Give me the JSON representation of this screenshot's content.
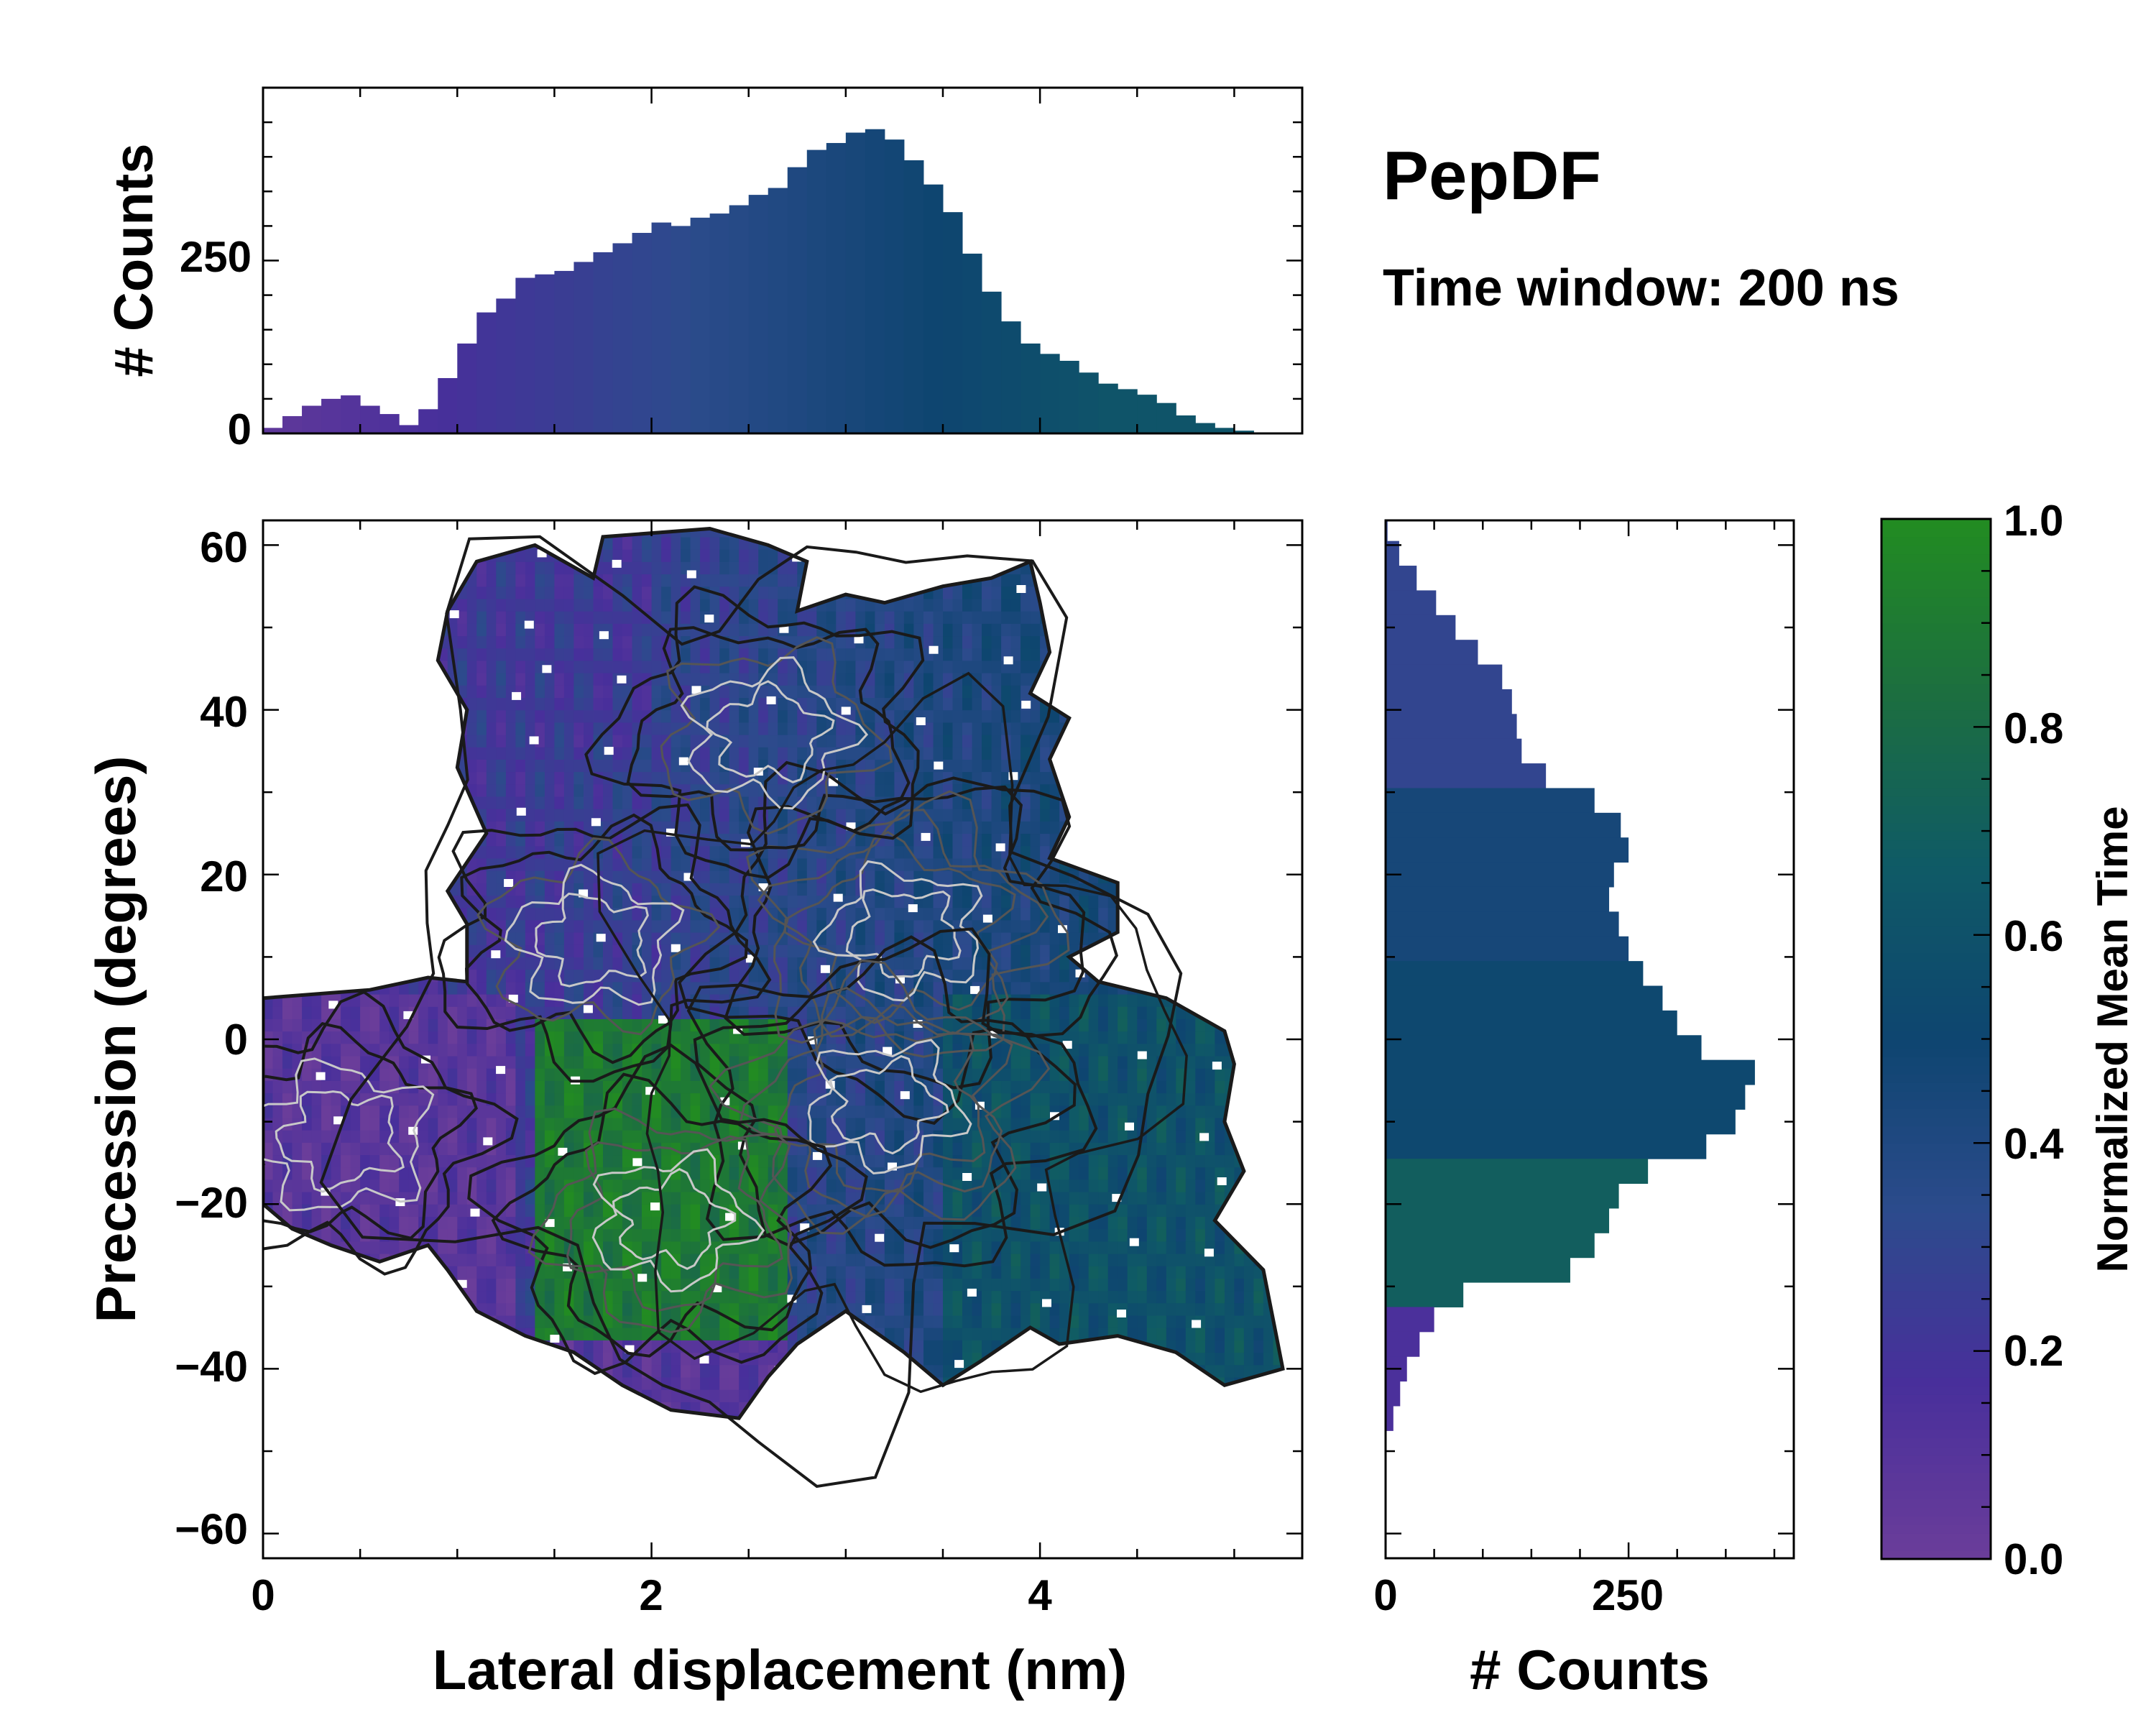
{
  "header": {
    "title": "PepDF",
    "subtitle": "Time window: 200 ns"
  },
  "colors": {
    "colormap": [
      "#6a3d9a",
      "#482f9b",
      "#2c4b8c",
      "#0e4570",
      "#0f5a66",
      "#1c6e40",
      "#228b22"
    ],
    "contour_dark": "#1a1a1a",
    "contour_mid": "#555555",
    "contour_light": "#c8c8c8"
  },
  "chart_data": [
    {
      "id": "top-histogram",
      "type": "bar",
      "title": "",
      "xlabel": "",
      "ylabel": "# Counts",
      "xlim": [
        0,
        5.35
      ],
      "ylim": [
        0,
        500
      ],
      "yticks": [
        0,
        250
      ],
      "ytick_labels": [
        "0",
        "250"
      ],
      "bin_centers_x": [
        0.05,
        0.15,
        0.25,
        0.35,
        0.45,
        0.55,
        0.65,
        0.75,
        0.85,
        0.95,
        1.05,
        1.15,
        1.25,
        1.35,
        1.45,
        1.55,
        1.65,
        1.75,
        1.85,
        1.95,
        2.05,
        2.15,
        2.25,
        2.35,
        2.45,
        2.55,
        2.65,
        2.75,
        2.85,
        2.95,
        3.05,
        3.15,
        3.25,
        3.35,
        3.45,
        3.55,
        3.65,
        3.75,
        3.85,
        3.95,
        4.05,
        4.15,
        4.25,
        4.35,
        4.45,
        4.55,
        4.65,
        4.75,
        4.85,
        4.95,
        5.05,
        5.15
      ],
      "counts": [
        8,
        25,
        40,
        50,
        55,
        40,
        28,
        12,
        35,
        80,
        130,
        175,
        195,
        225,
        230,
        235,
        248,
        262,
        275,
        290,
        305,
        300,
        312,
        318,
        330,
        345,
        355,
        385,
        410,
        420,
        435,
        440,
        425,
        395,
        360,
        320,
        260,
        205,
        162,
        130,
        115,
        105,
        88,
        72,
        64,
        56,
        44,
        26,
        15,
        8,
        4,
        1
      ],
      "bar_color_scale": "normalized mean time (0.0 – 1.0)"
    },
    {
      "id": "joint-map",
      "type": "heatmap",
      "title": "",
      "xlabel": "Lateral displacement (nm)",
      "ylabel": "Precession (degrees)",
      "xlim": [
        0,
        5.35
      ],
      "ylim": [
        -63,
        63
      ],
      "xticks": [
        0,
        2,
        4
      ],
      "xtick_labels": [
        "0",
        "2",
        "4"
      ],
      "yticks": [
        60,
        40,
        20,
        0,
        -20,
        -40,
        -60
      ],
      "ytick_labels": [
        "60",
        "40",
        "20",
        "0",
        "−20",
        "−40",
        "−60"
      ],
      "color_encoding": "Normalized Mean Time",
      "density_peaks": [
        {
          "x": 3.3,
          "y": 13,
          "weight": 1.0
        },
        {
          "x": 3.2,
          "y": -8,
          "weight": 0.95
        },
        {
          "x": 2.1,
          "y": -22,
          "weight": 0.7
        },
        {
          "x": 2.6,
          "y": 37,
          "weight": 0.5
        },
        {
          "x": 1.7,
          "y": 12,
          "weight": 0.45
        },
        {
          "x": 0.4,
          "y": -12,
          "weight": 0.35
        }
      ],
      "time_regions": [
        {
          "region": "left lobe (x 0–1.3)",
          "time": 0.08
        },
        {
          "region": "upper lobe (x 1–3, y 10–60)",
          "time": 0.3
        },
        {
          "region": "green band (x 1.4–2.6, y -40–0)",
          "time": 0.92
        },
        {
          "region": "right lobe (x 3.5–5.2, y -40–0)",
          "time": 0.6
        },
        {
          "region": "bottom tail (x 2–2.6, y -46–-35)",
          "time": 0.1
        }
      ]
    },
    {
      "id": "right-histogram",
      "type": "bar",
      "orientation": "horizontal",
      "title": "",
      "xlabel": "# Counts",
      "ylabel": "",
      "xlim": [
        0,
        420
      ],
      "ylim": [
        -63,
        63
      ],
      "xticks": [
        0,
        250
      ],
      "xtick_labels": [
        "0",
        "250"
      ],
      "bin_centers_y": [
        62,
        59,
        56,
        53,
        50,
        47,
        44,
        41,
        38,
        35,
        32,
        29,
        26,
        23,
        20,
        17,
        14,
        11,
        8,
        5,
        2,
        -1,
        -4,
        -7,
        -10,
        -13,
        -16,
        -19,
        -22,
        -25,
        -28,
        -31,
        -34,
        -37,
        -40,
        -43,
        -46
      ],
      "counts": [
        2,
        14,
        32,
        52,
        72,
        95,
        120,
        130,
        135,
        140,
        165,
        215,
        242,
        250,
        235,
        230,
        240,
        250,
        265,
        285,
        300,
        325,
        380,
        370,
        360,
        330,
        270,
        240,
        230,
        215,
        190,
        80,
        50,
        35,
        22,
        15,
        8
      ],
      "bar_color_scale": "normalized mean time (0.0 – 1.0)"
    },
    {
      "id": "colorbar",
      "type": "heatmap",
      "title": "",
      "ylabel": "Normalized Mean Time",
      "ylim": [
        0,
        1
      ],
      "yticks": [
        0,
        0.2,
        0.4,
        0.6,
        0.8,
        1.0
      ],
      "ytick_labels": [
        "0.0",
        "0.2",
        "0.4",
        "0.6",
        "0.8",
        "1.0"
      ]
    }
  ]
}
